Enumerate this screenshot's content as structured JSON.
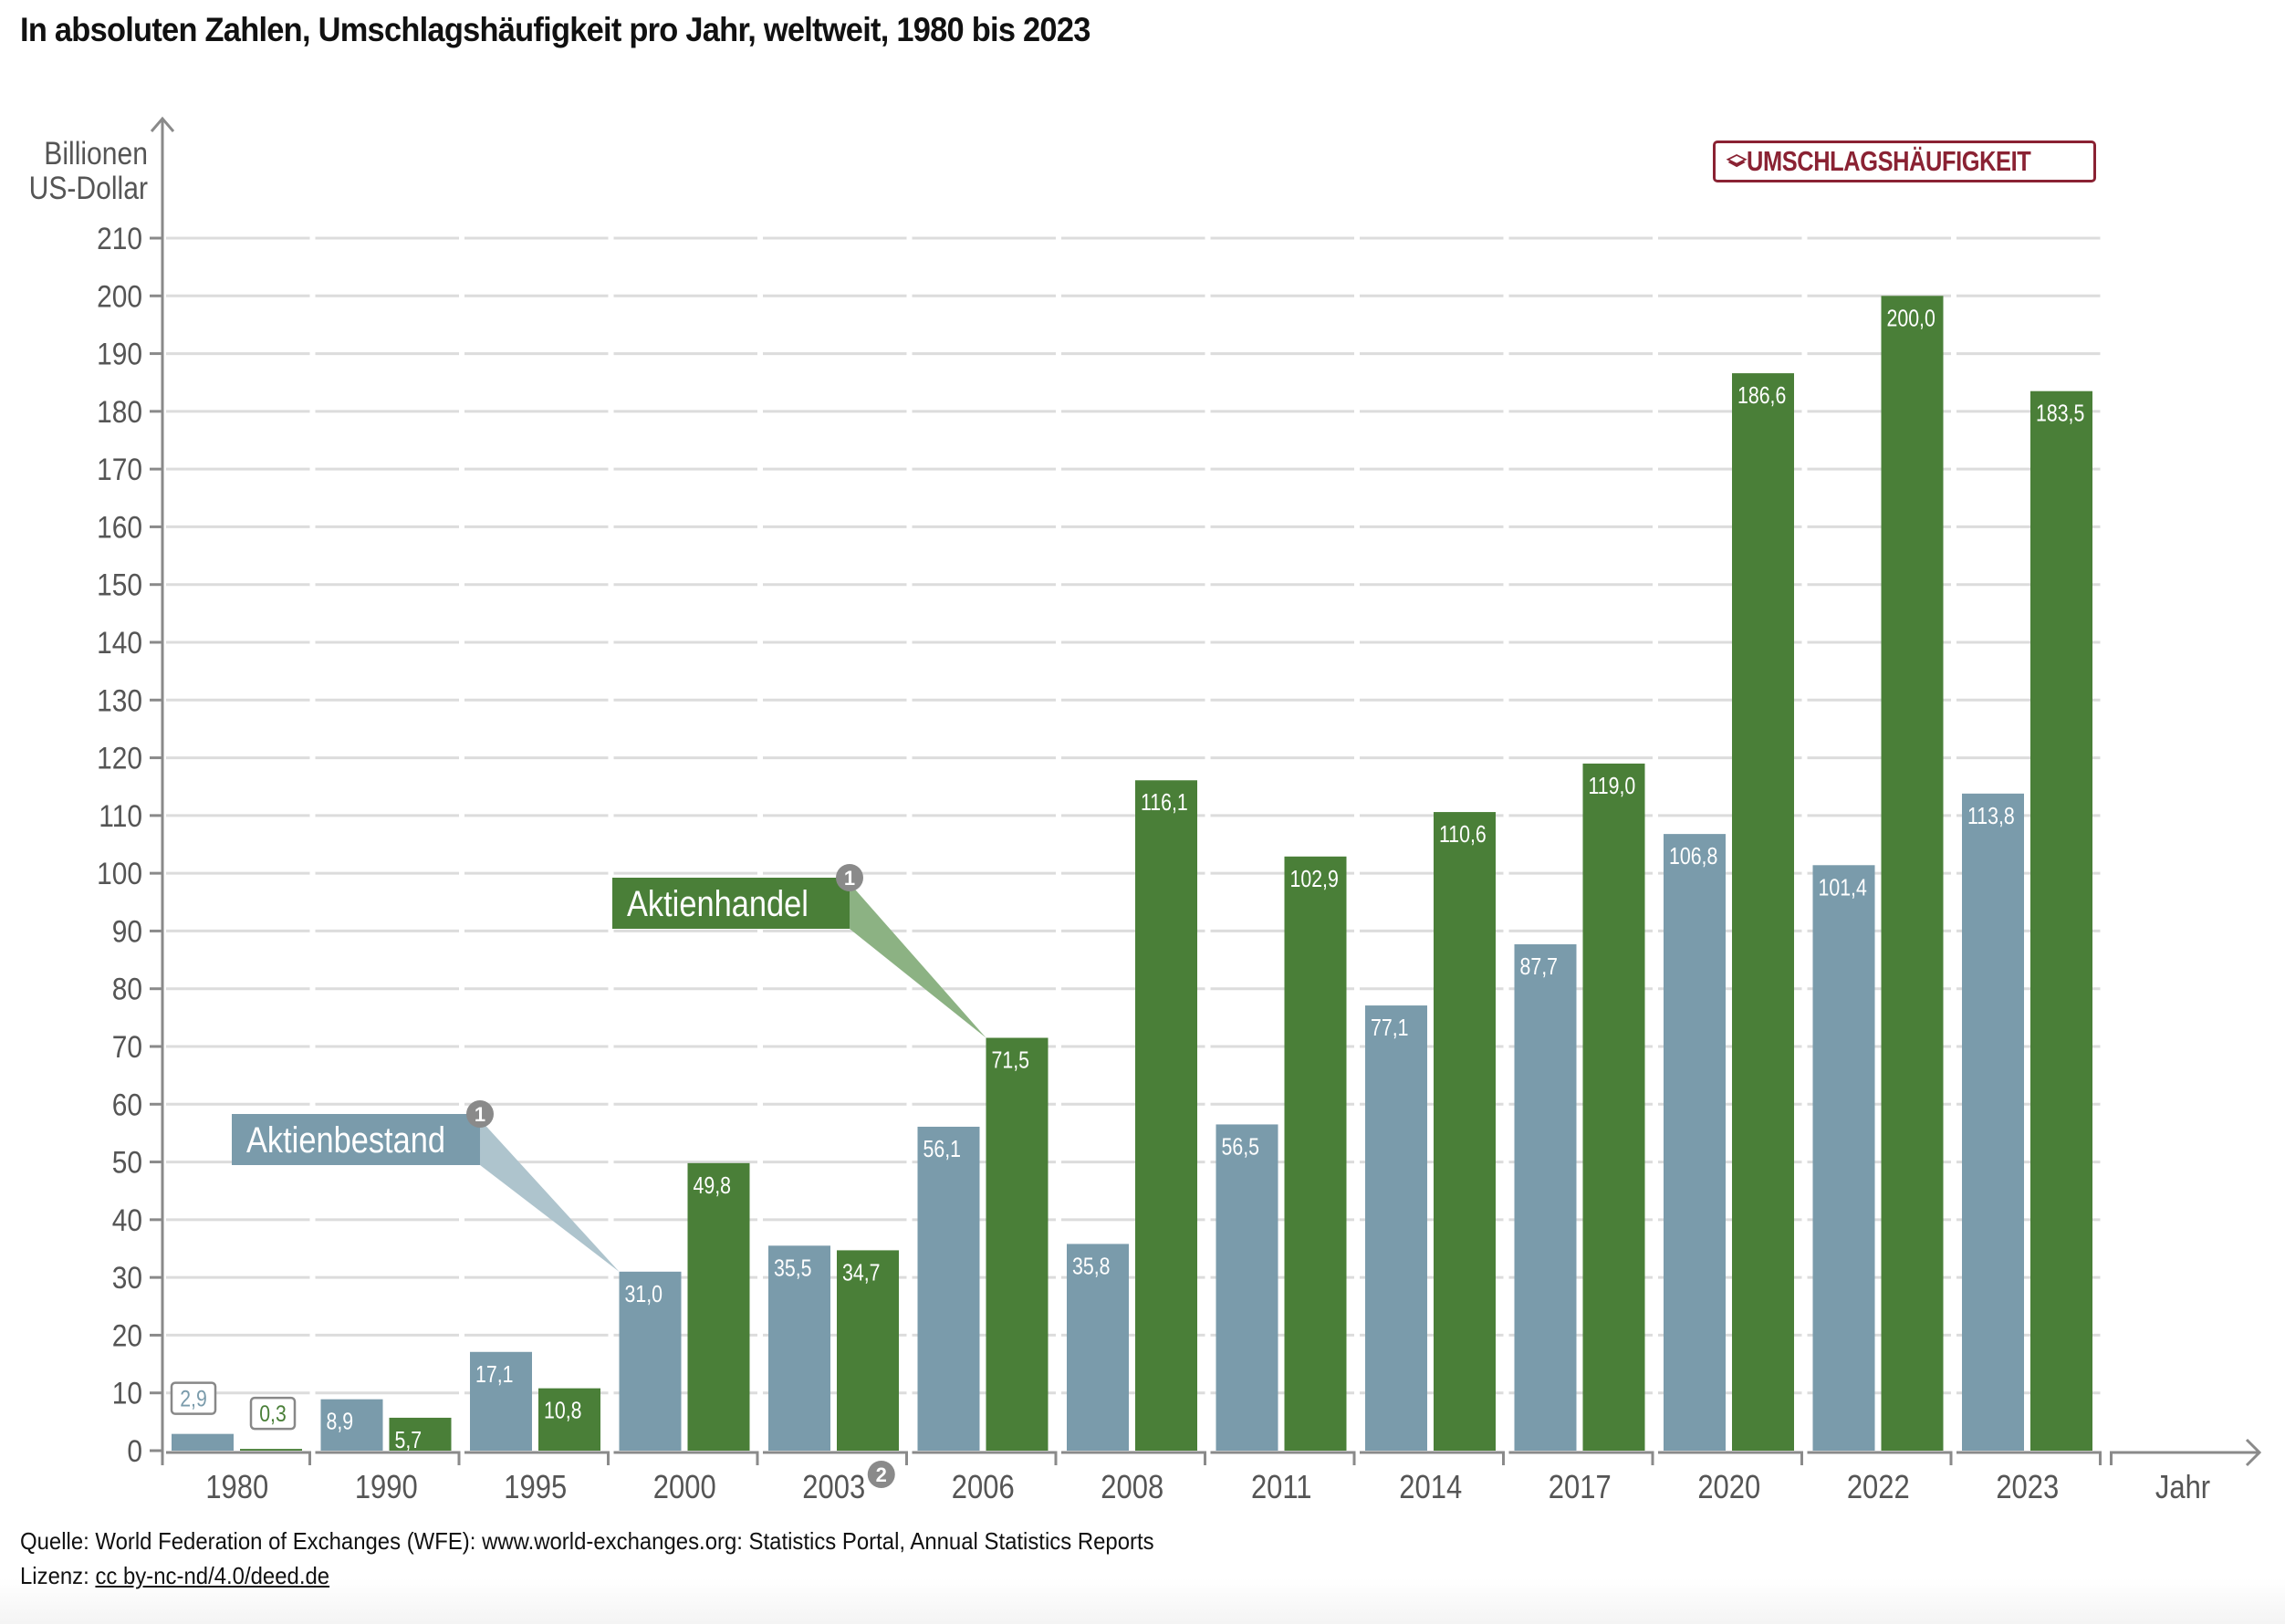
{
  "title": "In absoluten Zahlen, Umschlagshäufigkeit pro Jahr, weltweit, 1980 bis 2023",
  "badge": {
    "icon": "stacked-layers-icon",
    "label": "UMSCHLAGSHÄUFIGKEIT",
    "color": "#8a2233"
  },
  "footer": {
    "source": "Quelle: World Federation of Exchanges (WFE): www.world-exchanges.org: Statistics Portal, Annual Statistics Reports",
    "license_prefix": "Lizenz: ",
    "license_link": "cc by-nc-nd/4.0/deed.de"
  },
  "chart_data": {
    "type": "bar",
    "title": "In absoluten Zahlen, Umschlagshäufigkeit pro Jahr, weltweit, 1980 bis 2023",
    "ylabel": "Billionen US-Dollar",
    "ylabel_lines": [
      "Billionen",
      "US-Dollar"
    ],
    "xlabel": "Jahr",
    "ylim": [
      0,
      210
    ],
    "yticks": [
      0,
      10,
      20,
      30,
      40,
      50,
      60,
      70,
      80,
      90,
      100,
      110,
      120,
      130,
      140,
      150,
      160,
      170,
      180,
      190,
      200,
      210
    ],
    "grid": true,
    "categories": [
      "1980",
      "1990",
      "1995",
      "2000",
      "2003",
      "2006",
      "2008",
      "2011",
      "2014",
      "2017",
      "2020",
      "2022",
      "2023"
    ],
    "category_footnotes": {
      "2003": "2"
    },
    "series": [
      {
        "name": "Aktienbestand",
        "color": "#7a9bab",
        "callout_color": "#aec4cd",
        "footnote": "1",
        "values": [
          2.9,
          8.9,
          17.1,
          31.0,
          35.5,
          56.1,
          35.8,
          56.5,
          77.1,
          87.7,
          106.8,
          101.4,
          113.8
        ],
        "labels": [
          "2,9",
          "8,9",
          "17,1",
          "31,0",
          "35,5",
          "56,1",
          "35,8",
          "56,5",
          "77,1",
          "87,7",
          "106,8",
          "101,4",
          "113,8"
        ],
        "callout_category": "2000"
      },
      {
        "name": "Aktienhandel",
        "color": "#4a7f38",
        "callout_color": "#8cb283",
        "footnote": "1",
        "values": [
          0.3,
          5.7,
          10.8,
          49.8,
          34.7,
          71.5,
          116.1,
          102.9,
          110.6,
          119.0,
          186.6,
          200.0,
          183.5
        ],
        "labels": [
          "0,3",
          "5,7",
          "10,8",
          "49,8",
          "34,7",
          "71,5",
          "116,1",
          "102,9",
          "110,6",
          "119,0",
          "186,6",
          "200,0",
          "183,5"
        ],
        "callout_category": "2006"
      }
    ]
  }
}
